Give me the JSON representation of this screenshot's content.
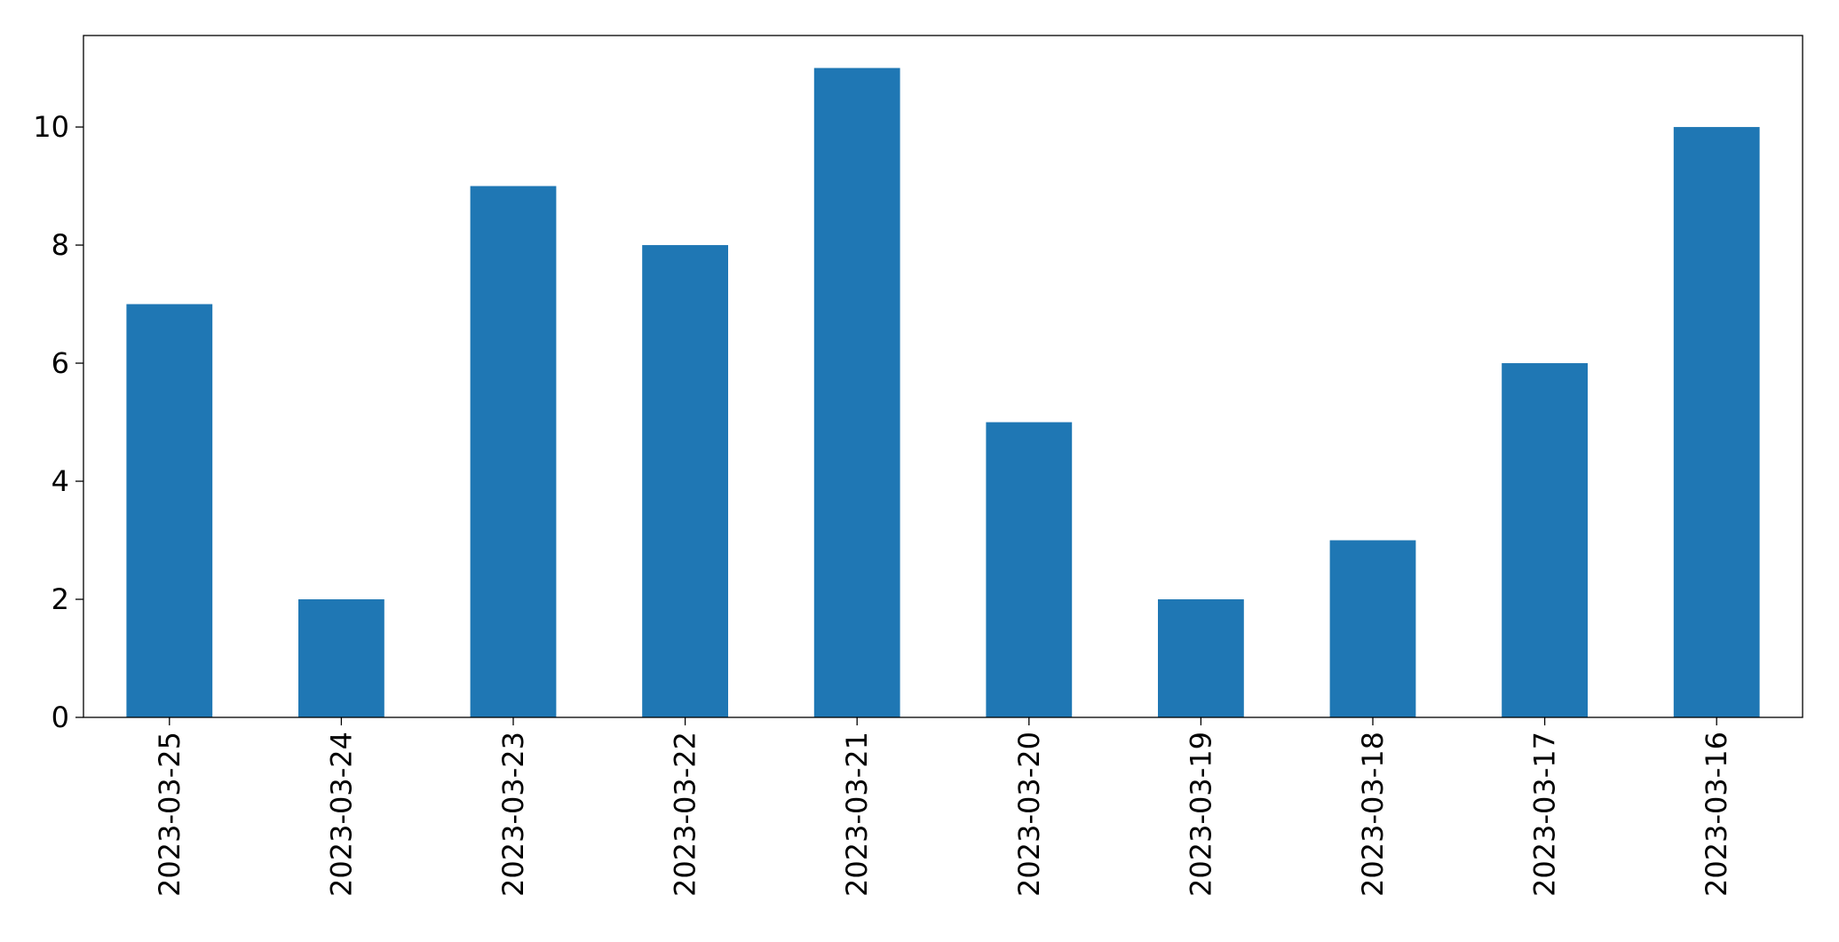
{
  "chart_data": {
    "type": "bar",
    "categories": [
      "2023-03-25",
      "2023-03-24",
      "2023-03-23",
      "2023-03-22",
      "2023-03-21",
      "2023-03-20",
      "2023-03-19",
      "2023-03-18",
      "2023-03-17",
      "2023-03-16"
    ],
    "values": [
      7,
      2,
      9,
      8,
      11,
      5,
      2,
      3,
      6,
      10
    ],
    "color": "#1f77b4",
    "ylim": [
      0,
      11.55
    ],
    "yticks": [
      0,
      2,
      4,
      6,
      8,
      10
    ],
    "grid": false
  }
}
